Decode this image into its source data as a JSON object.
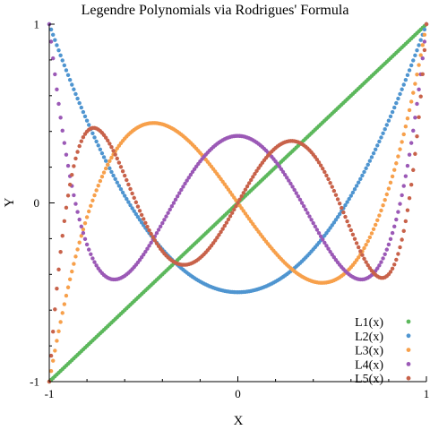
{
  "chart_data": {
    "type": "scatter",
    "title": "Legendre Polynomials via Rodrigues' Formula",
    "xlabel": "X",
    "ylabel": "Y",
    "xlim": [
      -1,
      1
    ],
    "ylim": [
      -1,
      1
    ],
    "x_ticks": [
      {
        "value": -1,
        "label": "-1"
      },
      {
        "value": 0,
        "label": "0"
      },
      {
        "value": 1,
        "label": "1"
      }
    ],
    "y_ticks": [
      {
        "value": -1,
        "label": "-1"
      },
      {
        "value": 0,
        "label": "0"
      },
      {
        "value": 1,
        "label": "1"
      }
    ],
    "x_minor_tick_step": 0.2,
    "y_minor_tick_step": 0.2,
    "grid": false,
    "legend_position": "bottom-right",
    "x_sampling": {
      "start": -1,
      "stop": 1,
      "count": 201
    },
    "series": [
      {
        "name": "L1(x)",
        "color": "#5cb85c",
        "polynomial_coefficients_ascending": [
          0,
          1
        ]
      },
      {
        "name": "L2(x)",
        "color": "#4f95d0",
        "polynomial_coefficients_ascending": [
          -0.5,
          0,
          1.5
        ]
      },
      {
        "name": "L3(x)",
        "color": "#f7a04b",
        "polynomial_coefficients_ascending": [
          0,
          -1.5,
          0,
          2.5
        ]
      },
      {
        "name": "L4(x)",
        "color": "#9b59b6",
        "polynomial_coefficients_ascending": [
          0.375,
          0,
          -3.75,
          0,
          4.375
        ]
      },
      {
        "name": "L5(x)",
        "color": "#c8624a",
        "polynomial_coefficients_ascending": [
          0,
          1.875,
          0,
          -8.75,
          0,
          7.875
        ]
      }
    ]
  }
}
